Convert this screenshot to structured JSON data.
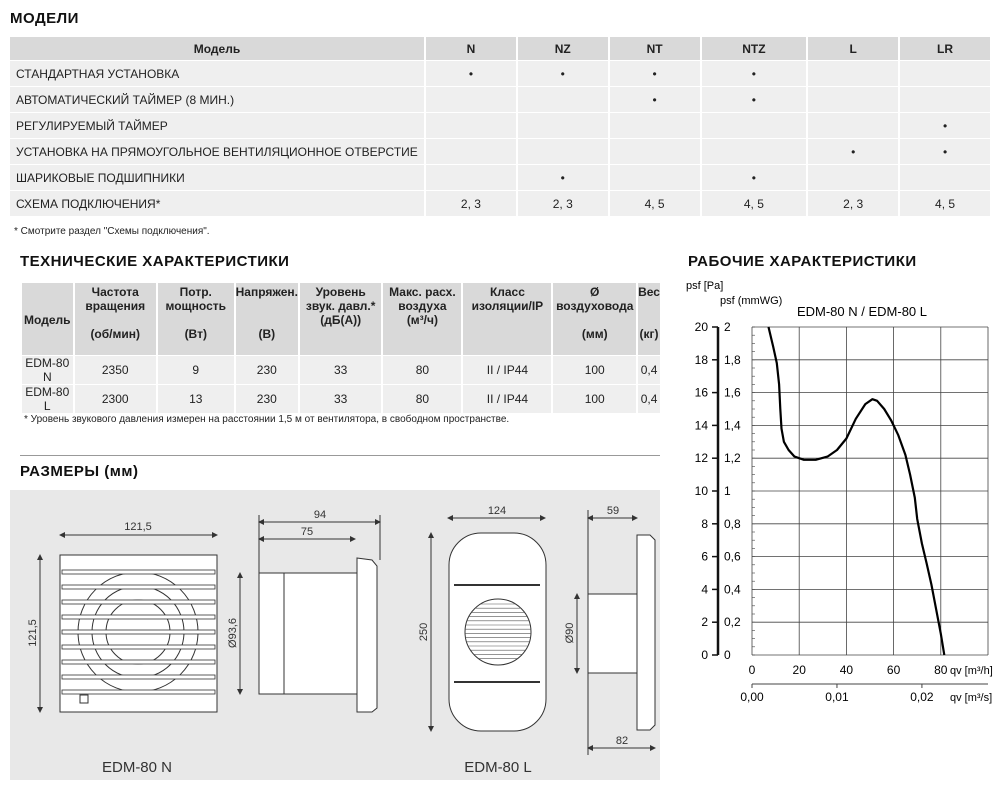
{
  "models": {
    "title": "МОДЕЛИ",
    "header": [
      "Модель",
      "N",
      "NZ",
      "NT",
      "NTZ",
      "L",
      "LR"
    ],
    "rows": [
      {
        "label": "СТАНДАРТНАЯ УСТАНОВКА",
        "cells": [
          "•",
          "•",
          "•",
          "•",
          "",
          ""
        ]
      },
      {
        "label": "АВТОМАТИЧЕСКИЙ ТАЙМЕР (8 МИН.)",
        "cells": [
          "",
          "",
          "•",
          "•",
          "",
          ""
        ]
      },
      {
        "label": "РЕГУЛИРУЕМЫЙ ТАЙМЕР",
        "cells": [
          "",
          "",
          "",
          "",
          "",
          "•"
        ]
      },
      {
        "label": "УСТАНОВКА НА ПРЯМОУГОЛЬНОЕ ВЕНТИЛЯЦИОННОЕ ОТВЕРСТИЕ",
        "cells": [
          "",
          "",
          "",
          "",
          "•",
          "•"
        ]
      },
      {
        "label": "ШАРИКОВЫЕ ПОДШИПНИКИ",
        "cells": [
          "",
          "•",
          "",
          "•",
          "",
          ""
        ]
      },
      {
        "label": "СХЕМА ПОДКЛЮЧЕНИЯ*",
        "cells": [
          "2, 3",
          "2, 3",
          "4, 5",
          "4, 5",
          "2, 3",
          "4, 5"
        ]
      }
    ],
    "note": "* Смотрите раздел \"Схемы подключения\"."
  },
  "tech": {
    "title": "ТЕХНИЧЕСКИЕ ХАРАКТЕРИСТИКИ",
    "header": [
      [
        "Модель",
        ""
      ],
      [
        "Частота вращения",
        "(об/мин)"
      ],
      [
        "Потр. мощность",
        "(Вт)"
      ],
      [
        "Напряжен.",
        "(В)"
      ],
      [
        "Уровень звук. давл.*",
        "(дБ(А))"
      ],
      [
        "Макс. расх. воздуха",
        "(м³/ч)"
      ],
      [
        "Класс изоляции/IP",
        ""
      ],
      [
        "Ø воздуховода",
        "(мм)"
      ],
      [
        "Вес",
        "(кг)"
      ]
    ],
    "rows": [
      [
        "EDM-80 N",
        "2350",
        "9",
        "230",
        "33",
        "80",
        "II / IP44",
        "100",
        "0,4"
      ],
      [
        "EDM-80 L",
        "2300",
        "13",
        "230",
        "33",
        "80",
        "II / IP44",
        "100",
        "0,4"
      ]
    ],
    "note": "* Уровень звукового давления измерен на расстоянии 1,5 м от вентилятора, в свободном пространстве."
  },
  "dimensions": {
    "title": "РАЗМЕРЫ (мм)",
    "n": {
      "label": "EDM-80 N",
      "width": "121,5",
      "height": "121,5",
      "depth_total": "94",
      "depth_body": "75",
      "diameter": "Ø93,6"
    },
    "l": {
      "label": "EDM-80 L",
      "width": "124",
      "height": "250",
      "depth_top": "59",
      "depth_bottom": "82",
      "diameter": "Ø90"
    }
  },
  "chart_data": {
    "type": "line",
    "title": "РАБОЧИЕ ХАРАКТЕРИСТИКИ",
    "subtitle": "EDM-80 N / EDM-80 L",
    "ylabel_left": "psf [Pa]",
    "ylabel_right": "psf (mmWG)",
    "xlabel": "qv [m³/h]",
    "xlabel2": "qv [m³/s]",
    "xlim": [
      0,
      100
    ],
    "ylim": [
      0,
      20
    ],
    "grid": true,
    "xticks": [
      "0",
      "20",
      "40",
      "60",
      "80"
    ],
    "yticks_pa": [
      "0",
      "2",
      "4",
      "6",
      "8",
      "10",
      "12",
      "14",
      "16",
      "18",
      "20"
    ],
    "yticks_mmwg": [
      "0",
      "0,2",
      "0,4",
      "0,6",
      "0,8",
      "1",
      "1,2",
      "1,4",
      "1,6",
      "1,8",
      "2"
    ],
    "x2ticks": [
      "0,00",
      "0,01",
      "0,02"
    ],
    "series": [
      {
        "x": [
          7,
          9,
          10.5,
          11.5,
          12,
          12.5,
          13.5,
          15.5,
          18,
          22,
          27,
          32,
          36,
          40,
          44,
          48,
          51,
          53,
          56,
          59,
          62,
          65,
          67,
          69,
          70,
          72,
          74,
          76,
          78,
          80,
          81.5
        ],
        "y": [
          20,
          18.8,
          17.8,
          16.5,
          15,
          13.8,
          13,
          12.5,
          12.1,
          11.9,
          11.9,
          12.1,
          12.5,
          13.2,
          14.4,
          15.3,
          15.6,
          15.5,
          15,
          14.3,
          13.4,
          12.2,
          11,
          9.6,
          8.3,
          6.8,
          5.6,
          4.3,
          2.8,
          1.3,
          0
        ]
      }
    ]
  }
}
